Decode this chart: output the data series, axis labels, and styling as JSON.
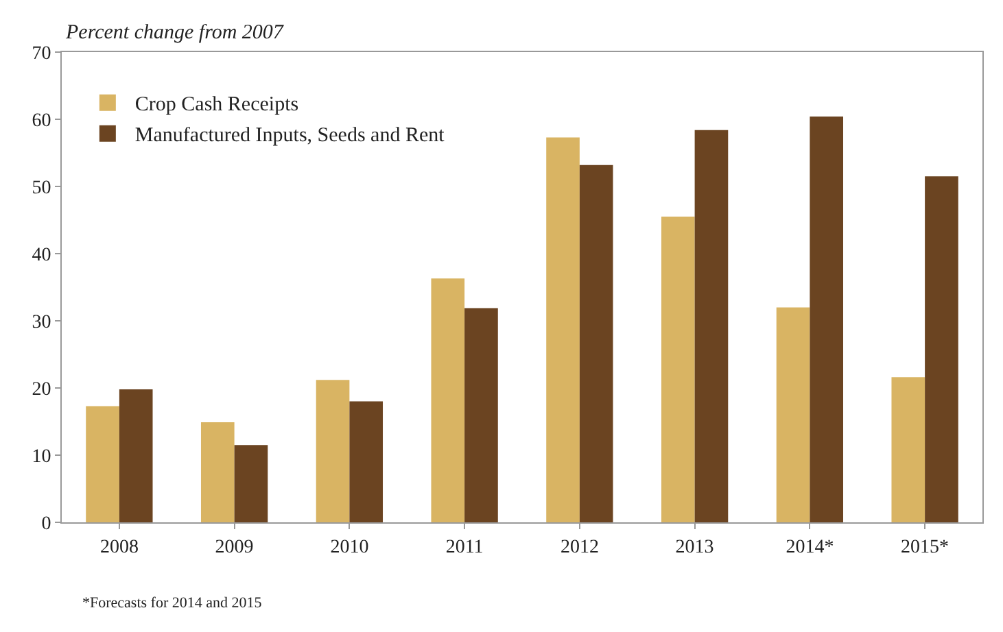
{
  "chart_data": {
    "type": "bar",
    "ylabel": "Percent change from 2007",
    "categories": [
      "2008",
      "2009",
      "2010",
      "2011",
      "2012",
      "2013",
      "2014*",
      "2015*"
    ],
    "series": [
      {
        "name": "Crop Cash Receipts",
        "color": "#d9b463",
        "values": [
          17.3,
          14.9,
          21.2,
          36.3,
          57.3,
          45.5,
          32.0,
          21.6
        ]
      },
      {
        "name": "Manufactured Inputs, Seeds and Rent",
        "color": "#6b4421",
        "values": [
          19.8,
          11.5,
          18.0,
          31.9,
          53.2,
          58.4,
          60.4,
          51.5
        ]
      }
    ],
    "ylim": [
      0,
      70
    ],
    "yticks": [
      0,
      10,
      20,
      30,
      40,
      50,
      60,
      70
    ],
    "grid": false,
    "legend": "top left",
    "annotations": [
      "*Forecasts for 2014 and 2015"
    ]
  }
}
